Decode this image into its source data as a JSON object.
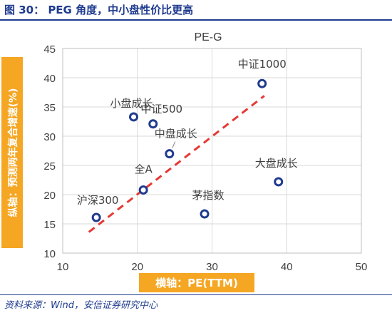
{
  "figure": {
    "title": "图 30： PEG 角度，中小盘性价比更高",
    "source": "资料来源：Wind，安信证券研究中心"
  },
  "colors": {
    "header": "#1f3b8f",
    "label_box": "#f5a623",
    "marker": "#1f3b8f",
    "trendline": "#e53935",
    "grid": "#d9d9d9"
  },
  "chart_data": {
    "type": "scatter",
    "title": "PE-G",
    "xlabel": "横轴：PE(TTM)",
    "ylabel": "纵轴：预测两年复合增速(%)",
    "xlim": [
      10,
      50
    ],
    "ylim": [
      10,
      45
    ],
    "xticks": [
      10,
      20,
      30,
      40,
      50
    ],
    "yticks": [
      10,
      15,
      20,
      25,
      30,
      35,
      40,
      45
    ],
    "grid": true,
    "points": [
      {
        "label": "沪深300",
        "x": 14.5,
        "y": 16.1
      },
      {
        "label": "全A",
        "x": 20.8,
        "y": 20.8
      },
      {
        "label": "小盘成长",
        "x": 19.5,
        "y": 33.3
      },
      {
        "label": "中证500",
        "x": 22.1,
        "y": 32.1
      },
      {
        "label": "中盘成长",
        "x": 24.3,
        "y": 27.0
      },
      {
        "label": "茅指数",
        "x": 29.0,
        "y": 16.7
      },
      {
        "label": "中证1000",
        "x": 36.7,
        "y": 39.0
      },
      {
        "label": "大盘成长",
        "x": 38.9,
        "y": 22.2
      }
    ],
    "trendline": {
      "x": [
        13.5,
        37.0
      ],
      "y": [
        13.6,
        36.9
      ]
    }
  }
}
